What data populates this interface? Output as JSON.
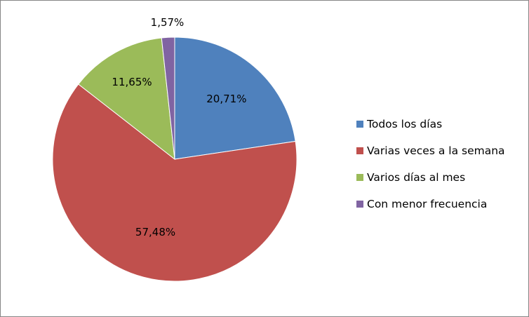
{
  "chart_data": {
    "type": "pie",
    "title": "",
    "slices": [
      {
        "label": "Todos los días",
        "value": 20.71,
        "display": "20,71%",
        "color": "#4F81BD"
      },
      {
        "label": "Varias veces a la semana",
        "value": 57.48,
        "display": "57,48%",
        "color": "#C0504D"
      },
      {
        "label": "Varios días al mes",
        "value": 11.65,
        "display": "11,65%",
        "color": "#9BBB59"
      },
      {
        "label": "Con menor frecuencia",
        "value": 1.57,
        "display": "1,57%",
        "color": "#8064A2"
      }
    ],
    "start_angle": "12 o'clock",
    "direction": "clockwise",
    "legend_position": "right"
  }
}
